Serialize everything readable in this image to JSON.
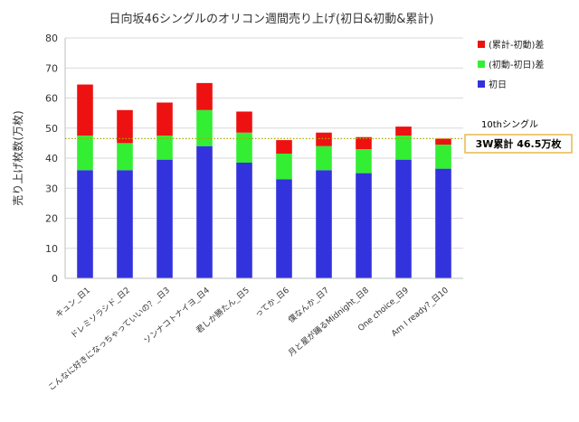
{
  "chart_data": {
    "type": "bar",
    "stacked": true,
    "title": "日向坂46シングルのオリコン週間売り上げ(初日&初動&累計)",
    "ylabel": "売り上げ枚数(万枚)",
    "ylim": [
      0,
      80
    ],
    "yticks": [
      0,
      10,
      20,
      30,
      40,
      50,
      60,
      70,
      80
    ],
    "grid": true,
    "legend_position": "right",
    "categories": [
      "キュン_日1",
      "ドレミソラシド_日2",
      "こんなに好きになっちゃっていいの？_日3",
      "ソンナコトナイヨ_日4",
      "君しか勝たん_日5",
      "ってか_日6",
      "僕なんか_日7",
      "月と星が踊るMidnight_日8",
      "One choice_日9",
      "Am I ready?_日10"
    ],
    "series": [
      {
        "name": "初日",
        "color": "#3333dd",
        "values": [
          36.0,
          36.0,
          39.5,
          44.0,
          38.5,
          33.0,
          36.0,
          35.0,
          39.5,
          36.5
        ]
      },
      {
        "name": "(初動-初日)差",
        "color": "#33ee33",
        "values": [
          11.5,
          9.0,
          8.0,
          12.0,
          10.0,
          8.5,
          8.0,
          8.0,
          8.0,
          8.0
        ]
      },
      {
        "name": "(累計-初動)差",
        "color": "#ee1111",
        "values": [
          17.0,
          11.0,
          11.0,
          9.0,
          7.0,
          4.5,
          4.5,
          4.0,
          3.0,
          2.0
        ]
      }
    ],
    "reference_line": {
      "value": 46.5,
      "color": "#aaaa00",
      "style": "dotted"
    },
    "annotation": {
      "label": "10thシングル",
      "box_text": "3W累計 46.5万枚",
      "box_border_color": "#e8b84a"
    }
  }
}
